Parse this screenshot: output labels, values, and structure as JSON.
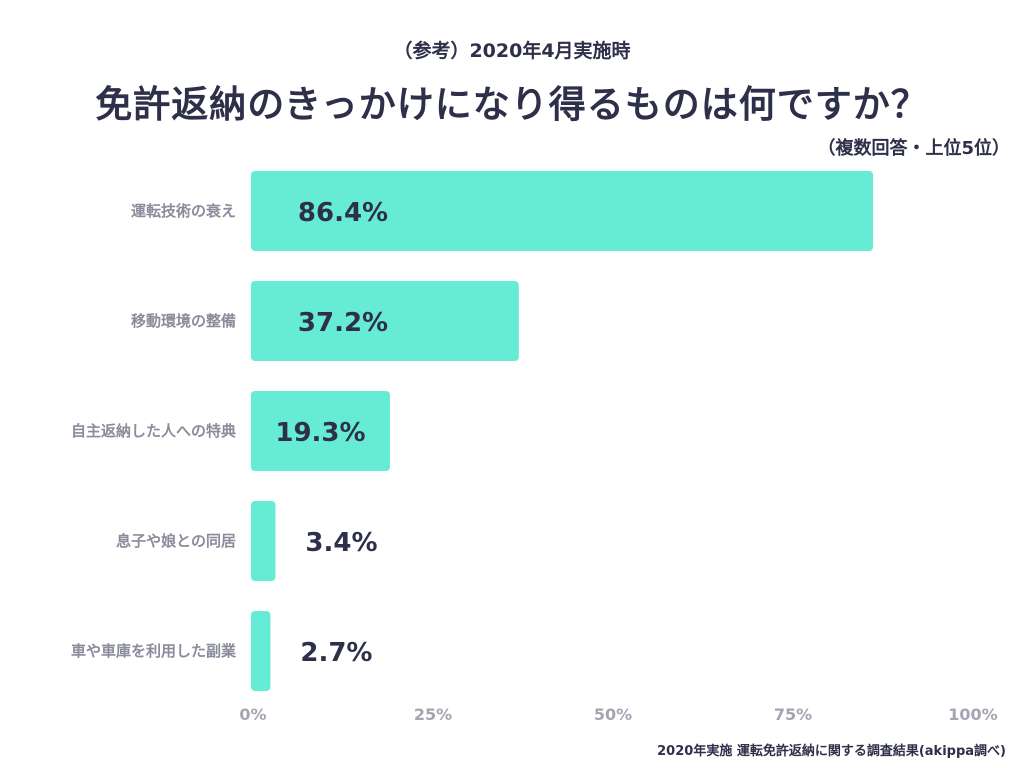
{
  "header": {
    "subtitle": "（参考）2020年4月実施時",
    "title": "免許返納のきっかけになり得るものは何ですか？",
    "note": "（複数回答・上位5位）"
  },
  "footer": {
    "source": "2020年実施 運転免許返納に関する調査結果(akippa調べ)"
  },
  "chart_data": {
    "type": "bar",
    "orientation": "horizontal",
    "categories": [
      "運転技術の衰え",
      "移動環境の整備",
      "自主返納した人への特典",
      "息子や娘との同居",
      "車や車庫を利用した副業"
    ],
    "values": [
      86.4,
      37.2,
      19.3,
      3.4,
      2.7
    ],
    "value_labels": [
      "86.4%",
      "37.2%",
      "19.3%",
      "3.4%",
      "2.7%"
    ],
    "xlim": [
      0,
      100
    ],
    "ticks": [
      0,
      25,
      50,
      75,
      100
    ],
    "tick_labels": [
      "0%",
      "25%",
      "50%",
      "75%",
      "100%"
    ],
    "bar_color": "#66ebd4",
    "grid": false,
    "title": "免許返納のきっかけになり得るものは何ですか？"
  }
}
